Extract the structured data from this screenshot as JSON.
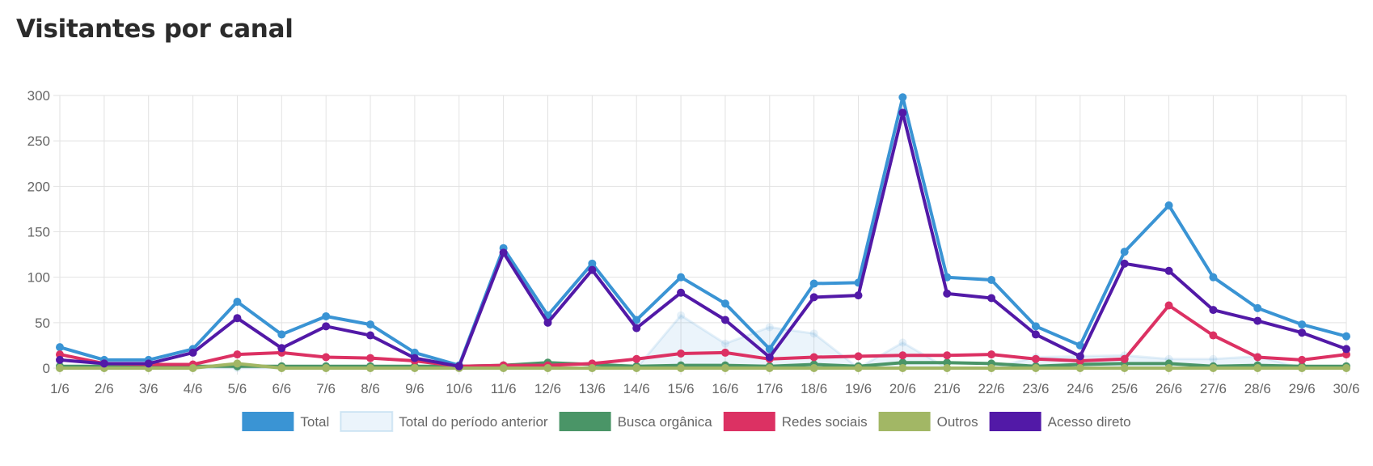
{
  "title": "Visitantes por canal",
  "chart_data": {
    "type": "line",
    "x": [
      "1/6",
      "2/6",
      "3/6",
      "4/6",
      "5/6",
      "6/6",
      "7/6",
      "8/6",
      "9/6",
      "10/6",
      "11/6",
      "12/6",
      "13/6",
      "14/6",
      "15/6",
      "16/6",
      "17/6",
      "18/6",
      "19/6",
      "20/6",
      "21/6",
      "22/6",
      "23/6",
      "24/6",
      "25/6",
      "26/6",
      "27/6",
      "28/6",
      "29/6",
      "30/6"
    ],
    "ylim": [
      0,
      300
    ],
    "yticks": [
      0,
      50,
      100,
      150,
      200,
      250,
      300
    ],
    "grid": true,
    "legend": "bottom",
    "series": [
      {
        "name": "Total do período anterior",
        "style": "area",
        "color": "#3a94d4",
        "values": [
          0,
          0,
          0,
          0,
          0,
          0,
          0,
          0,
          0,
          0,
          0,
          0,
          0,
          0,
          58,
          27,
          45,
          38,
          0,
          28,
          0,
          0,
          12,
          13,
          14,
          10,
          10,
          13,
          0,
          0
        ]
      },
      {
        "name": "Total",
        "color": "#3a94d4",
        "values": [
          23,
          9,
          9,
          21,
          73,
          37,
          57,
          48,
          17,
          3,
          132,
          58,
          115,
          53,
          100,
          71,
          21,
          93,
          94,
          298,
          100,
          97,
          46,
          25,
          128,
          179,
          100,
          66,
          48,
          35
        ]
      },
      {
        "name": "Busca orgânica",
        "color": "#4a9567",
        "values": [
          2,
          2,
          2,
          2,
          2,
          2,
          2,
          2,
          2,
          2,
          3,
          6,
          4,
          2,
          3,
          3,
          2,
          4,
          2,
          6,
          6,
          5,
          2,
          4,
          5,
          5,
          2,
          3,
          2,
          2
        ]
      },
      {
        "name": "Redes sociais",
        "color": "#dc3163",
        "values": [
          15,
          5,
          4,
          4,
          15,
          17,
          12,
          11,
          8,
          2,
          3,
          3,
          5,
          10,
          16,
          17,
          10,
          12,
          13,
          14,
          14,
          15,
          10,
          8,
          10,
          69,
          36,
          12,
          9,
          15
        ]
      },
      {
        "name": "Outros",
        "color": "#a2b765",
        "values": [
          0,
          0,
          0,
          0,
          5,
          0,
          0,
          0,
          0,
          0,
          0,
          0,
          0,
          0,
          0,
          0,
          0,
          0,
          0,
          0,
          0,
          0,
          0,
          0,
          0,
          0,
          0,
          0,
          0,
          0
        ]
      },
      {
        "name": "Acesso direto",
        "color": "#5219a7",
        "values": [
          9,
          5,
          5,
          17,
          55,
          22,
          46,
          36,
          11,
          2,
          127,
          50,
          108,
          44,
          83,
          53,
          12,
          78,
          80,
          281,
          82,
          77,
          37,
          13,
          115,
          107,
          64,
          52,
          39,
          21
        ]
      }
    ]
  },
  "legend_order": [
    {
      "label": "Total",
      "color": "#3a94d4",
      "kind": "solid"
    },
    {
      "label": "Total do período anterior",
      "color": "#3a94d4",
      "kind": "light"
    },
    {
      "label": "Busca orgânica",
      "color": "#4a9567",
      "kind": "solid"
    },
    {
      "label": "Redes sociais",
      "color": "#dc3163",
      "kind": "solid"
    },
    {
      "label": "Outros",
      "color": "#a2b765",
      "kind": "solid"
    },
    {
      "label": "Acesso direto",
      "color": "#5219a7",
      "kind": "solid"
    }
  ]
}
